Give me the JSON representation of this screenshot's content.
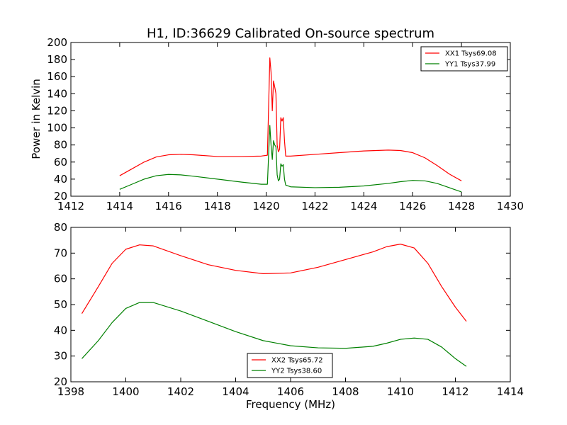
{
  "chart_data": [
    {
      "type": "line",
      "title": "H1, ID:36629 Calibrated On-source spectrum",
      "xlabel": "",
      "ylabel": "Power in Kelvin",
      "xlim": [
        1412,
        1430
      ],
      "ylim": [
        20,
        200
      ],
      "xticks": [
        "1412",
        "1414",
        "1416",
        "1418",
        "1420",
        "1422",
        "1424",
        "1426",
        "1428",
        "1430"
      ],
      "yticks": [
        "20",
        "40",
        "60",
        "80",
        "100",
        "120",
        "140",
        "160",
        "180",
        "200"
      ],
      "legend_position": "upper right",
      "grid": false,
      "series": [
        {
          "name": "XX1 Tsys69.08",
          "color": "#ff0000",
          "x": [
            1414,
            1414.5,
            1415,
            1415.5,
            1416,
            1416.5,
            1417,
            1418,
            1419,
            1419.8,
            1420.05,
            1420.15,
            1420.2,
            1420.25,
            1420.3,
            1420.35,
            1420.4,
            1420.45,
            1420.5,
            1420.55,
            1420.6,
            1420.65,
            1420.7,
            1420.75,
            1420.8,
            1421,
            1422,
            1423,
            1424,
            1425,
            1425.5,
            1426,
            1426.5,
            1427,
            1427.5,
            1428
          ],
          "y": [
            44,
            52,
            60,
            66,
            68.5,
            69,
            68.5,
            66.5,
            66.5,
            67,
            68,
            182,
            165,
            120,
            155,
            148,
            140,
            80,
            72,
            75,
            112,
            108,
            112,
            85,
            67,
            67,
            69,
            71,
            73,
            74,
            73.5,
            71,
            65,
            56,
            46,
            38
          ]
        },
        {
          "name": "YY1 Tsys37.99",
          "color": "#008000",
          "x": [
            1414,
            1414.5,
            1415,
            1415.5,
            1416,
            1416.5,
            1417,
            1418,
            1419,
            1419.8,
            1420.05,
            1420.15,
            1420.2,
            1420.25,
            1420.3,
            1420.35,
            1420.4,
            1420.45,
            1420.5,
            1420.55,
            1420.6,
            1420.65,
            1420.7,
            1420.75,
            1420.8,
            1421,
            1422,
            1423,
            1424,
            1425,
            1425.5,
            1426,
            1426.5,
            1427,
            1427.5,
            1428
          ],
          "y": [
            28,
            34,
            40,
            44,
            45.5,
            45,
            43.5,
            40,
            36.5,
            34,
            34,
            103,
            80,
            63,
            85,
            80,
            78,
            45,
            38,
            40,
            58,
            55,
            57,
            40,
            33,
            31,
            30,
            30.5,
            32,
            35,
            37,
            38.5,
            38,
            35,
            30,
            25
          ]
        }
      ]
    },
    {
      "type": "line",
      "title": "",
      "xlabel": "Frequency (MHz)",
      "ylabel": "",
      "xlim": [
        1398,
        1414
      ],
      "ylim": [
        20,
        80
      ],
      "xticks": [
        "1398",
        "1400",
        "1402",
        "1404",
        "1406",
        "1408",
        "1410",
        "1412",
        "1414"
      ],
      "yticks": [
        "20",
        "30",
        "40",
        "50",
        "60",
        "70",
        "80"
      ],
      "legend_position": "lower center",
      "grid": false,
      "series": [
        {
          "name": "XX2 Tsys65.72",
          "color": "#ff0000",
          "x": [
            1398.4,
            1399,
            1399.5,
            1400,
            1400.5,
            1401,
            1402,
            1403,
            1404,
            1405,
            1406,
            1407,
            1408,
            1409,
            1409.5,
            1410,
            1410.5,
            1411,
            1411.5,
            1412,
            1412.4
          ],
          "y": [
            46.5,
            57,
            66,
            71.5,
            73.2,
            72.8,
            69,
            65.5,
            63.3,
            62,
            62.3,
            64.5,
            67.5,
            70.5,
            72.5,
            73.5,
            72,
            66,
            57,
            49,
            43.5
          ]
        },
        {
          "name": "YY2 Tsys38.60",
          "color": "#008000",
          "x": [
            1398.4,
            1399,
            1399.5,
            1400,
            1400.5,
            1401,
            1402,
            1403,
            1404,
            1405,
            1406,
            1407,
            1408,
            1409,
            1409.5,
            1410,
            1410.5,
            1411,
            1411.5,
            1412,
            1412.4
          ],
          "y": [
            29,
            36,
            43,
            48.5,
            50.8,
            50.8,
            47.5,
            43.5,
            39.5,
            36,
            34,
            33.2,
            33,
            33.8,
            35,
            36.5,
            37,
            36.5,
            33.5,
            29,
            26
          ]
        }
      ]
    }
  ]
}
